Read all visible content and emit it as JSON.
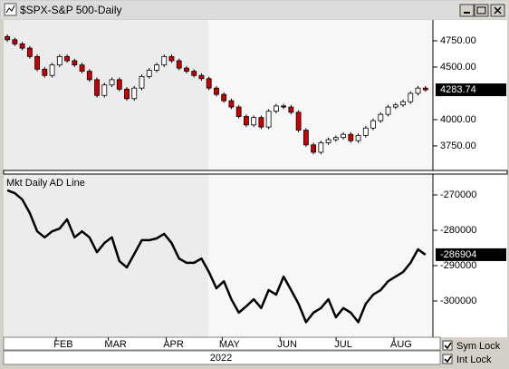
{
  "window": {
    "controls": [
      {
        "label": "Sym Lock",
        "checked": true
      },
      {
        "label": "Int Lock",
        "checked": true
      }
    ]
  },
  "chart_data": [
    {
      "type": "candlestick",
      "title": "$SPX-S&P 500-Daily",
      "x": [
        2,
        6,
        10,
        14,
        18,
        22,
        26,
        30,
        34,
        38,
        42,
        46,
        50,
        54,
        58,
        62,
        66,
        70,
        74,
        78,
        82,
        86,
        90,
        94,
        98,
        102,
        106,
        110,
        114,
        118,
        122,
        126,
        130,
        134,
        138,
        142,
        146,
        150,
        154,
        158,
        162,
        166,
        170,
        174,
        178,
        182,
        186,
        190,
        194,
        198,
        202,
        206,
        210,
        214,
        218,
        222,
        226
      ],
      "open": [
        4790,
        4760,
        4720,
        4680,
        4600,
        4480,
        4420,
        4520,
        4600,
        4560,
        4520,
        4460,
        4380,
        4230,
        4330,
        4380,
        4290,
        4200,
        4300,
        4410,
        4470,
        4520,
        4600,
        4560,
        4490,
        4460,
        4420,
        4390,
        4300,
        4240,
        4180,
        4120,
        4030,
        3950,
        4020,
        3930,
        4080,
        4130,
        4120,
        4070,
        3900,
        3760,
        3690,
        3780,
        3810,
        3830,
        3860,
        3800,
        3850,
        3920,
        3990,
        4050,
        4120,
        4140,
        4170,
        4250,
        4300
      ],
      "high": [
        4810,
        4780,
        4740,
        4700,
        4620,
        4500,
        4540,
        4620,
        4620,
        4580,
        4540,
        4480,
        4400,
        4350,
        4400,
        4400,
        4310,
        4320,
        4430,
        4490,
        4540,
        4620,
        4620,
        4580,
        4510,
        4480,
        4440,
        4410,
        4320,
        4260,
        4200,
        4140,
        4050,
        4040,
        4040,
        4100,
        4150,
        4150,
        4140,
        4090,
        3920,
        3780,
        3800,
        3830,
        3850,
        3880,
        3880,
        3870,
        3940,
        4010,
        4070,
        4140,
        4160,
        4190,
        4270,
        4320,
        4320
      ],
      "low": [
        4740,
        4700,
        4660,
        4580,
        4460,
        4400,
        4400,
        4500,
        4540,
        4500,
        4440,
        4360,
        4210,
        4210,
        4310,
        4270,
        4180,
        4180,
        4280,
        4390,
        4450,
        4500,
        4540,
        4470,
        4440,
        4400,
        4370,
        4280,
        4220,
        4160,
        4100,
        4010,
        3930,
        3930,
        3910,
        3910,
        4060,
        4100,
        4050,
        3880,
        3740,
        3670,
        3670,
        3760,
        3790,
        3810,
        3780,
        3780,
        3830,
        3900,
        3970,
        4030,
        4100,
        4120,
        4150,
        4230,
        4265
      ],
      "close": [
        4760,
        4720,
        4680,
        4600,
        4480,
        4420,
        4520,
        4600,
        4560,
        4520,
        4460,
        4380,
        4230,
        4330,
        4380,
        4290,
        4200,
        4300,
        4410,
        4470,
        4520,
        4600,
        4560,
        4490,
        4460,
        4420,
        4390,
        4300,
        4240,
        4180,
        4120,
        4030,
        3950,
        4020,
        3930,
        4080,
        4130,
        4120,
        4070,
        3900,
        3760,
        3690,
        3780,
        3810,
        3830,
        3860,
        3800,
        3850,
        3920,
        3990,
        4050,
        4120,
        4140,
        4170,
        4250,
        4300,
        4283.74
      ],
      "up_color": "#ffffff",
      "down_color": "#cc0000",
      "xlim": [
        0,
        230
      ],
      "ylim": [
        3517,
        4948
      ],
      "yticks": [
        {
          "value": 3750,
          "label": "3750.00"
        },
        {
          "value": 4000,
          "label": "4000.00"
        },
        {
          "value": 4500,
          "label": "4500.00"
        },
        {
          "value": 4750,
          "label": "4750.00"
        }
      ]
    },
    {
      "type": "line",
      "title": "Mkt Daily AD Line",
      "color": "#000000",
      "x": [
        2,
        6,
        10,
        14,
        18,
        22,
        26,
        30,
        34,
        38,
        42,
        46,
        50,
        54,
        58,
        62,
        66,
        70,
        74,
        78,
        82,
        86,
        90,
        94,
        98,
        102,
        106,
        110,
        114,
        118,
        122,
        126,
        130,
        134,
        138,
        142,
        146,
        150,
        154,
        158,
        162,
        166,
        170,
        174,
        178,
        182,
        186,
        190,
        194,
        198,
        202,
        206,
        210,
        214,
        218,
        222,
        226
      ],
      "values": [
        -268700,
        -269500,
        -271300,
        -275100,
        -280300,
        -282000,
        -280300,
        -279500,
        -276900,
        -282000,
        -280300,
        -282000,
        -286200,
        -283600,
        -282000,
        -288700,
        -290500,
        -286700,
        -282800,
        -282800,
        -282300,
        -281000,
        -283600,
        -288000,
        -289200,
        -289200,
        -288000,
        -291800,
        -296400,
        -294400,
        -299500,
        -303300,
        -301500,
        -299500,
        -302000,
        -296900,
        -298200,
        -293100,
        -296900,
        -300800,
        -306000,
        -303300,
        -302000,
        -299500,
        -304600,
        -302000,
        -303300,
        -306000,
        -300800,
        -298200,
        -296900,
        -294400,
        -293100,
        -291800,
        -289200,
        -285400,
        -286904
      ],
      "xlim": [
        0,
        230
      ],
      "ylim": [
        -310256,
        -264100
      ],
      "yticks": [
        -300000,
        -290000,
        -280000,
        -270000
      ],
      "xticks": [
        {
          "value": 32,
          "label": "FEB"
        },
        {
          "value": 60,
          "label": "MAR"
        },
        {
          "value": 91,
          "label": "APR"
        },
        {
          "value": 121,
          "label": "MAY"
        },
        {
          "value": 152,
          "label": "JUN"
        },
        {
          "value": 182,
          "label": "JUL"
        },
        {
          "value": 213,
          "label": "AUG"
        }
      ],
      "xlabel": "2022"
    }
  ]
}
